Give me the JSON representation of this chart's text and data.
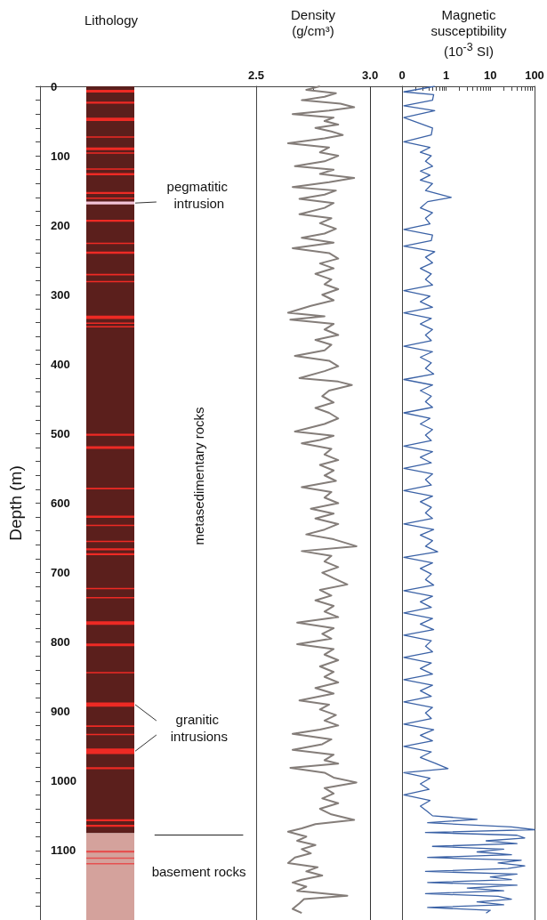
{
  "chart_data": [
    {
      "type": "bar",
      "title": "Lithology",
      "ylabel": "Depth (m)",
      "ylim": [
        1200,
        0
      ],
      "tick_labels": "y",
      "categories": [
        null
      ],
      "yticks": [
        0,
        {
          "value": 20,
          "label": null
        },
        {
          "value": 40,
          "label": null
        },
        {
          "value": 60,
          "label": null
        },
        {
          "value": 80,
          "label": null
        },
        100,
        {
          "value": 120,
          "label": null
        },
        {
          "value": 140,
          "label": null
        },
        {
          "value": 160,
          "label": null
        },
        {
          "value": 180,
          "label": null
        },
        200,
        {
          "value": 220,
          "label": null
        },
        {
          "value": 240,
          "label": null
        },
        {
          "value": 260,
          "label": null
        },
        {
          "value": 280,
          "label": null
        },
        300,
        {
          "value": 320,
          "label": null
        },
        {
          "value": 340,
          "label": null
        },
        {
          "value": 360,
          "label": null
        },
        {
          "value": 380,
          "label": null
        },
        400,
        {
          "value": 420,
          "label": null
        },
        {
          "value": 440,
          "label": null
        },
        {
          "value": 460,
          "label": null
        },
        {
          "value": 480,
          "label": null
        },
        500,
        {
          "value": 520,
          "label": null
        },
        {
          "value": 540,
          "label": null
        },
        {
          "value": 560,
          "label": null
        },
        {
          "value": 580,
          "label": null
        },
        600,
        {
          "value": 620,
          "label": null
        },
        {
          "value": 640,
          "label": null
        },
        {
          "value": 660,
          "label": null
        },
        {
          "value": 680,
          "label": null
        },
        700,
        {
          "value": 720,
          "label": null
        },
        {
          "value": 740,
          "label": null
        },
        {
          "value": 760,
          "label": null
        },
        {
          "value": 780,
          "label": null
        },
        800,
        {
          "value": 820,
          "label": null
        },
        {
          "value": 840,
          "label": null
        },
        {
          "value": 860,
          "label": null
        },
        {
          "value": 880,
          "label": null
        },
        900,
        {
          "value": 920,
          "label": null
        },
        {
          "value": 940,
          "label": null
        },
        {
          "value": 960,
          "label": null
        },
        {
          "value": 980,
          "label": null
        },
        1000,
        {
          "value": 1020,
          "label": null
        },
        {
          "value": 1040,
          "label": null
        },
        {
          "value": 1060,
          "label": null
        },
        {
          "value": 1080,
          "label": null
        },
        1100,
        {
          "value": 1120,
          "label": null
        },
        {
          "value": 1140,
          "label": null
        },
        {
          "value": 1160,
          "label": null
        },
        {
          "value": 1180,
          "label": null
        }
      ],
      "series": [
        {
          "color": "#5b1f1c",
          "base": [
            0
          ],
          "values": [
            1075
          ]
        },
        {
          "color": "#d4a29c",
          "base": [
            1075
          ],
          "values": [
            125
          ]
        },
        {
          "color": "#f2c4d8",
          "base": [
            166
          ],
          "values": [
            4
          ]
        },
        {
          "color": "#ee2a24",
          "base": [
            5
          ],
          "values": [
            4
          ]
        },
        {
          "color": "#ee2a24",
          "base": [
            22
          ],
          "values": [
            3
          ]
        },
        {
          "color": "#ee2a24",
          "base": [
            45
          ],
          "values": [
            5
          ]
        },
        {
          "color": "#ee2a24",
          "base": [
            72
          ],
          "values": [
            2
          ]
        },
        {
          "color": "#ee2a24",
          "base": [
            88
          ],
          "values": [
            4
          ]
        },
        {
          "color": "#ee2a24",
          "base": [
            95
          ],
          "values": [
            2
          ]
        },
        {
          "color": "#ee2a24",
          "base": [
            118
          ],
          "values": [
            2
          ]
        },
        {
          "color": "#ee2a24",
          "base": [
            125
          ],
          "values": [
            3
          ]
        },
        {
          "color": "#ee2a24",
          "base": [
            152
          ],
          "values": [
            3
          ]
        },
        {
          "color": "#ee2a24",
          "base": [
            160
          ],
          "values": [
            2
          ]
        },
        {
          "color": "#ee2a24",
          "base": [
            192
          ],
          "values": [
            3
          ]
        },
        {
          "color": "#ee2a24",
          "base": [
            225
          ],
          "values": [
            2
          ]
        },
        {
          "color": "#ee2a24",
          "base": [
            238
          ],
          "values": [
            3
          ]
        },
        {
          "color": "#ee2a24",
          "base": [
            270
          ],
          "values": [
            2
          ]
        },
        {
          "color": "#ee2a24",
          "base": [
            280
          ],
          "values": [
            2
          ]
        },
        {
          "color": "#ee2a24",
          "base": [
            330
          ],
          "values": [
            5
          ]
        },
        {
          "color": "#ee2a24",
          "base": [
            340
          ],
          "values": [
            2
          ]
        },
        {
          "color": "#ee2a24",
          "base": [
            345
          ],
          "values": [
            2
          ]
        },
        {
          "color": "#ee2a24",
          "base": [
            500
          ],
          "values": [
            3
          ]
        },
        {
          "color": "#ee2a24",
          "base": [
            518
          ],
          "values": [
            4
          ]
        },
        {
          "color": "#ee2a24",
          "base": [
            578
          ],
          "values": [
            2
          ]
        },
        {
          "color": "#ee2a24",
          "base": [
            618
          ],
          "values": [
            3
          ]
        },
        {
          "color": "#ee2a24",
          "base": [
            631
          ],
          "values": [
            2
          ]
        },
        {
          "color": "#ee2a24",
          "base": [
            654
          ],
          "values": [
            2
          ]
        },
        {
          "color": "#ee2a24",
          "base": [
            665
          ],
          "values": [
            3
          ]
        },
        {
          "color": "#ee2a24",
          "base": [
            672
          ],
          "values": [
            3
          ]
        },
        {
          "color": "#ee2a24",
          "base": [
            722
          ],
          "values": [
            2
          ]
        },
        {
          "color": "#ee2a24",
          "base": [
            735
          ],
          "values": [
            2
          ]
        },
        {
          "color": "#ee2a24",
          "base": [
            770
          ],
          "values": [
            5
          ]
        },
        {
          "color": "#ee2a24",
          "base": [
            802
          ],
          "values": [
            4
          ]
        },
        {
          "color": "#ee2a24",
          "base": [
            843
          ],
          "values": [
            2
          ]
        },
        {
          "color": "#ee2a24",
          "base": [
            887
          ],
          "values": [
            6
          ]
        },
        {
          "color": "#ee2a24",
          "base": [
            920
          ],
          "values": [
            2
          ]
        },
        {
          "color": "#ee2a24",
          "base": [
            932
          ],
          "values": [
            2
          ]
        },
        {
          "color": "#ee2a24",
          "base": [
            953
          ],
          "values": [
            8
          ]
        },
        {
          "color": "#ee2a24",
          "base": [
            980
          ],
          "values": [
            3
          ]
        },
        {
          "color": "#ee2a24",
          "base": [
            1055
          ],
          "values": [
            3
          ]
        },
        {
          "color": "#ee2a24",
          "base": [
            1063
          ],
          "values": [
            3
          ]
        },
        {
          "color": "#e55050",
          "base": [
            1100
          ],
          "values": [
            3
          ]
        },
        {
          "color": "#e55050",
          "base": [
            1110
          ],
          "values": [
            2
          ]
        },
        {
          "color": "#e55050",
          "base": [
            1118
          ],
          "values": [
            2
          ]
        }
      ],
      "ref_lines": [
        {
          "axis": "y",
          "value": 1077,
          "label": "basement rocks",
          "color": "#222222"
        }
      ],
      "annotations": [
        "pegmatitic intrusion",
        "metasedimentary rocks",
        "granitic intrusions"
      ]
    },
    {
      "type": "line",
      "title": "Density (g/cm³)",
      "orientation": "horizontal",
      "ylim": [
        1200,
        0
      ],
      "tick_labels": "x",
      "xlim": [
        2.5,
        3.14
      ],
      "xticks": [
        2.5,
        {
          "value": 2.75,
          "label": null
        },
        {
          "value": 3,
          "label": "3.0"
        }
      ],
      "ref_lines": [
        {
          "axis": "x",
          "value": 3,
          "color": "#333333"
        }
      ],
      "series": [
        {
          "color": "#847d79",
          "x": [
            0,
            5,
            10,
            15,
            20,
            25,
            30,
            35,
            40,
            45,
            50,
            55,
            60,
            65,
            70,
            75,
            82,
            88,
            95,
            100,
            108,
            115,
            120,
            126,
            132,
            138,
            145,
            150,
            156,
            162,
            168,
            175,
            184,
            190,
            197,
            205,
            212,
            218,
            225,
            233,
            240,
            248,
            255,
            262,
            270,
            278,
            285,
            292,
            300,
            308,
            316,
            326,
            331,
            336,
            342,
            350,
            358,
            365,
            372,
            380,
            388,
            395,
            403,
            410,
            420,
            425,
            430,
            438,
            446,
            455,
            463,
            470,
            478,
            486,
            497,
            503,
            509,
            514,
            522,
            530,
            538,
            545,
            553,
            560,
            568,
            577,
            584,
            592,
            600,
            608,
            615,
            622,
            630,
            638,
            645,
            652,
            662,
            669,
            676,
            684,
            692,
            700,
            708,
            717,
            725,
            733,
            740,
            748,
            756,
            764,
            772,
            780,
            788,
            795,
            803,
            810,
            818,
            826,
            835,
            843,
            850,
            858,
            866,
            874,
            884,
            890,
            897,
            905,
            913,
            920,
            926,
            932,
            940,
            947,
            955,
            962,
            970,
            975,
            981,
            988,
            995,
            1002,
            1010,
            1018,
            1025,
            1032,
            1040,
            1048,
            1056,
            1062,
            1068,
            1073,
            1080,
            1086,
            1092,
            1098,
            1104,
            1110,
            1118,
            1124,
            1130,
            1136,
            1142,
            1146,
            1152,
            1158,
            1165,
            1170,
            1176,
            1184,
            1190
          ],
          "values": [
            2.78,
            2.72,
            2.85,
            2.8,
            2.7,
            2.87,
            2.93,
            2.82,
            2.66,
            2.84,
            2.8,
            2.86,
            2.76,
            2.83,
            2.88,
            2.8,
            2.64,
            2.82,
            2.78,
            2.86,
            2.8,
            2.67,
            2.84,
            2.78,
            2.93,
            2.82,
            2.66,
            2.85,
            2.8,
            2.69,
            2.84,
            2.8,
            2.69,
            2.83,
            2.78,
            2.85,
            2.8,
            2.7,
            2.84,
            2.66,
            2.82,
            2.86,
            2.78,
            2.84,
            2.76,
            2.83,
            2.8,
            2.86,
            2.79,
            2.84,
            2.74,
            2.64,
            2.8,
            2.65,
            2.84,
            2.8,
            2.86,
            2.76,
            2.83,
            2.8,
            2.67,
            2.82,
            2.86,
            2.8,
            2.69,
            2.86,
            2.92,
            2.82,
            2.79,
            2.84,
            2.76,
            2.82,
            2.86,
            2.8,
            2.67,
            2.84,
            2.78,
            2.7,
            2.83,
            2.8,
            2.86,
            2.78,
            2.84,
            2.8,
            2.85,
            2.7,
            2.83,
            2.8,
            2.86,
            2.74,
            2.84,
            2.76,
            2.86,
            2.8,
            2.72,
            2.84,
            2.94,
            2.7,
            2.83,
            2.8,
            2.86,
            2.79,
            2.84,
            2.9,
            2.78,
            2.83,
            2.76,
            2.84,
            2.8,
            2.86,
            2.68,
            2.84,
            2.79,
            2.83,
            2.68,
            2.84,
            2.8,
            2.86,
            2.78,
            2.84,
            2.8,
            2.86,
            2.76,
            2.84,
            2.69,
            2.82,
            2.78,
            2.85,
            2.8,
            2.86,
            2.78,
            2.66,
            2.83,
            2.79,
            2.66,
            2.84,
            2.8,
            2.86,
            2.65,
            2.8,
            2.84,
            2.94,
            2.8,
            2.84,
            2.79,
            2.86,
            2.78,
            2.83,
            2.93,
            2.76,
            2.7,
            2.64,
            2.72,
            2.68,
            2.76,
            2.7,
            2.74,
            2.67,
            2.64,
            2.77,
            2.72,
            2.79,
            2.7,
            2.66,
            2.72,
            2.68,
            2.9,
            2.71,
            2.69,
            2.66,
            2.7
          ]
        }
      ]
    },
    {
      "type": "line",
      "title": "Magnetic susceptibility (10$^{-3}$ SI)",
      "orientation": "horizontal",
      "ylim": [
        1200,
        0
      ],
      "tick_labels": "x",
      "xlim": [
        0.1,
        100
      ],
      "xticks": [
        {
          "value": 0.1,
          "label": "0"
        },
        {
          "value": 0.2,
          "label": null
        },
        {
          "value": 0.3,
          "label": null
        },
        {
          "value": 0.4,
          "label": null
        },
        {
          "value": 0.5,
          "label": null
        },
        {
          "value": 0.6,
          "label": null
        },
        {
          "value": 0.7,
          "label": null
        },
        {
          "value": 0.8,
          "label": null
        },
        {
          "value": 0.9,
          "label": null
        },
        1,
        {
          "value": 2,
          "label": null
        },
        {
          "value": 3,
          "label": null
        },
        {
          "value": 4,
          "label": null
        },
        {
          "value": 5,
          "label": null
        },
        {
          "value": 6,
          "label": null
        },
        {
          "value": 7,
          "label": null
        },
        {
          "value": 8,
          "label": null
        },
        {
          "value": 9,
          "label": null
        },
        10,
        {
          "value": 20,
          "label": null
        },
        {
          "value": 30,
          "label": null
        },
        {
          "value": 40,
          "label": null
        },
        {
          "value": 50,
          "label": null
        },
        {
          "value": 60,
          "label": null
        },
        {
          "value": 70,
          "label": null
        },
        {
          "value": 80,
          "label": null
        },
        {
          "value": 90,
          "label": null
        },
        100
      ],
      "log": "x",
      "series": [
        {
          "color": "#3b62a6",
          "x": [
            0,
            8,
            12,
            20,
            28,
            35,
            45,
            60,
            70,
            80,
            88,
            95,
            100,
            108,
            115,
            122,
            128,
            135,
            140,
            150,
            160,
            166,
            175,
            182,
            190,
            198,
            206,
            214,
            222,
            230,
            238,
            246,
            254,
            262,
            270,
            278,
            286,
            294,
            302,
            310,
            318,
            326,
            334,
            342,
            350,
            358,
            366,
            374,
            382,
            390,
            398,
            406,
            414,
            422,
            430,
            438,
            446,
            454,
            462,
            470,
            478,
            486,
            494,
            502,
            510,
            518,
            526,
            534,
            542,
            550,
            558,
            566,
            574,
            582,
            590,
            598,
            606,
            614,
            622,
            630,
            638,
            646,
            654,
            662,
            670,
            678,
            686,
            694,
            702,
            710,
            718,
            726,
            734,
            742,
            750,
            758,
            766,
            774,
            782,
            790,
            798,
            806,
            814,
            822,
            830,
            838,
            846,
            854,
            862,
            870,
            878,
            886,
            894,
            902,
            910,
            918,
            926,
            934,
            942,
            950,
            958,
            966,
            974,
            982,
            988,
            996,
            1004,
            1012,
            1020,
            1028,
            1036,
            1044,
            1050,
            1055,
            1060,
            1066,
            1070,
            1074,
            1078,
            1082,
            1086,
            1090,
            1094,
            1098,
            1102,
            1106,
            1110,
            1114,
            1118,
            1122,
            1126,
            1130,
            1134,
            1138,
            1142,
            1146,
            1150,
            1154,
            1158,
            1162,
            1166,
            1170,
            1174,
            1178,
            1182,
            1186,
            1190
          ],
          "values": [
            0.55,
            0.11,
            0.52,
            0.49,
            0.11,
            0.55,
            0.11,
            0.49,
            0.46,
            0.11,
            0.43,
            0.26,
            0.46,
            0.34,
            0.49,
            0.26,
            0.43,
            0.26,
            0.49,
            0.34,
            1.3,
            0.38,
            0.26,
            0.49,
            0.34,
            0.43,
            0.11,
            0.49,
            0.46,
            0.11,
            0.55,
            0.34,
            0.49,
            0.26,
            0.46,
            0.34,
            0.49,
            0.11,
            0.43,
            0.26,
            0.49,
            0.11,
            0.46,
            0.26,
            0.49,
            0.34,
            0.46,
            0.11,
            0.49,
            0.26,
            0.46,
            0.34,
            0.52,
            0.11,
            0.49,
            0.26,
            0.46,
            0.34,
            0.49,
            0.11,
            0.43,
            0.26,
            0.49,
            0.34,
            0.46,
            0.11,
            0.49,
            0.26,
            0.46,
            0.11,
            0.49,
            0.34,
            0.46,
            0.11,
            0.49,
            0.26,
            0.46,
            0.34,
            0.49,
            0.11,
            0.52,
            0.26,
            0.49,
            0.34,
            0.64,
            0.11,
            0.49,
            0.26,
            0.46,
            0.34,
            0.52,
            0.11,
            0.49,
            0.26,
            0.46,
            0.11,
            0.49,
            0.26,
            0.52,
            0.11,
            0.46,
            0.34,
            0.49,
            0.11,
            0.46,
            0.26,
            0.49,
            0.11,
            0.49,
            0.26,
            0.46,
            0.11,
            0.49,
            0.34,
            0.46,
            0.11,
            0.52,
            0.26,
            0.49,
            0.11,
            0.46,
            0.26,
            0.55,
            1.1,
            0.11,
            0.43,
            0.26,
            0.41,
            0.11,
            0.43,
            0.26,
            0.38,
            0.49,
            5,
            0.38,
            30,
            100,
            0.34,
            40,
            60,
            8,
            40,
            0.49,
            20,
            5,
            30,
            0.38,
            50,
            15,
            60,
            25,
            0.34,
            40,
            10,
            30,
            0.38,
            40,
            3,
            20,
            0.34,
            15,
            30,
            5,
            20,
            0.38,
            10,
            8
          ]
        }
      ]
    }
  ]
}
